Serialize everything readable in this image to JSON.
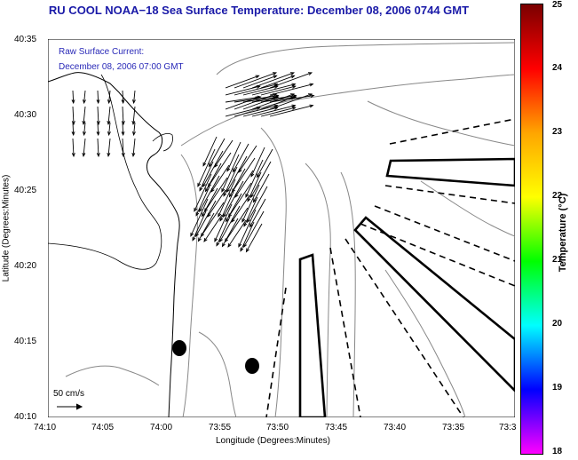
{
  "title": "RU COOL  NOAA−18  Sea Surface Temperature:  December 08, 2006 0744 GMT",
  "current_label": {
    "line1": "Raw Surface Current:",
    "line2": "December 08, 2006 07:00 GMT"
  },
  "scale_label": "50 cm/s",
  "axes": {
    "xlabel": "Longitude (Degrees:Minutes)",
    "ylabel": "Latitude (Degrees:Minutes)",
    "xticks": [
      "74:10",
      "74:05",
      "74:00",
      "73:55",
      "73:50",
      "73:45",
      "73:40",
      "73:35",
      "73:3"
    ],
    "yticks": [
      "40:35",
      "40:30",
      "40:25",
      "40:20",
      "40:15",
      "40:10"
    ]
  },
  "colorbar": {
    "title": "Temperature (°C)",
    "ticks": [
      "25",
      "24",
      "23",
      "22",
      "21",
      "20",
      "19",
      "18"
    ],
    "range": [
      18,
      25
    ],
    "colors": [
      "#ff00ff",
      "#0000ff",
      "#00ffff",
      "#00ff00",
      "#ffff00",
      "#ffa500",
      "#ff0000",
      "#7a0000"
    ]
  },
  "colors": {
    "title": "#1a1aa8",
    "label": "#2a2ab8"
  }
}
